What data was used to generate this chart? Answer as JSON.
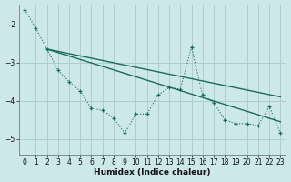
{
  "background_color": "#cde8e8",
  "grid_color": "#b0cccc",
  "line_color": "#1a6b5a",
  "xlabel": "Humidex (Indice chaleur)",
  "ylim": [
    -5.4,
    -1.5
  ],
  "xlim": [
    -0.5,
    23.5
  ],
  "yticks": [
    -5,
    -4,
    -3,
    -2
  ],
  "xticks": [
    0,
    1,
    2,
    3,
    4,
    5,
    6,
    7,
    8,
    9,
    10,
    11,
    12,
    13,
    14,
    15,
    16,
    17,
    18,
    19,
    20,
    21,
    22,
    23
  ],
  "zigzag_x": [
    0,
    1,
    2,
    3,
    4,
    5,
    6,
    7,
    8,
    9,
    10,
    11,
    12,
    13,
    14,
    15,
    16,
    17,
    18,
    19,
    20,
    21,
    22,
    23
  ],
  "zigzag_y": [
    -1.62,
    -2.1,
    -2.65,
    -3.2,
    -3.5,
    -3.75,
    -4.2,
    -4.25,
    -4.45,
    -4.85,
    -4.35,
    -4.35,
    -3.85,
    -3.65,
    -3.7,
    -2.6,
    -3.85,
    -4.05,
    -4.5,
    -4.6,
    -4.6,
    -4.65,
    -4.15,
    -4.85
  ],
  "line1_x": [
    2,
    23
  ],
  "line1_y": [
    -2.65,
    -3.9
  ],
  "line2_x": [
    2,
    23
  ],
  "line2_y": [
    -2.65,
    -4.55
  ]
}
